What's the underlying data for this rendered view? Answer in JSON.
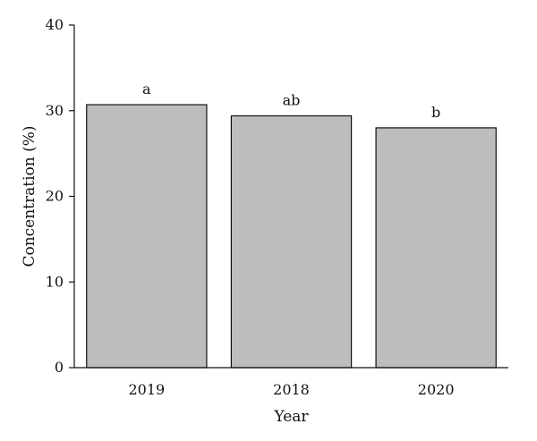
{
  "chart_data": {
    "type": "bar",
    "categories": [
      "2019",
      "2018",
      "2020"
    ],
    "values": [
      30.7,
      29.4,
      28.0
    ],
    "letters": [
      "a",
      "ab",
      "b"
    ],
    "xlabel": "Year",
    "ylabel": "Concentration (%)",
    "ylim": [
      0,
      40
    ],
    "yticks": [
      0,
      10,
      20,
      30,
      40
    ],
    "grid": false,
    "bar_color": "#bdbdbd",
    "bar_edge_color": "#111111"
  }
}
